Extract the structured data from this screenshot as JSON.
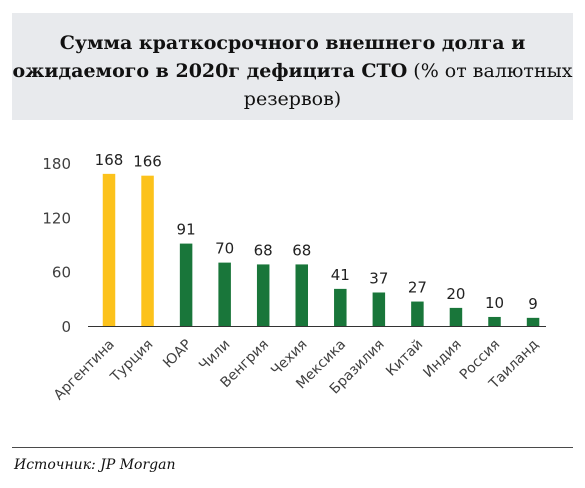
{
  "title": {
    "bold_part": "Сумма краткосрочного внешнего долга и ожидаемого в 2020г дефицита СТО",
    "normal_part": "(% от валютных резервов)"
  },
  "source": "Источник: JP Morgan",
  "colors": {
    "highlight": "#fcc21b",
    "main": "#19763a",
    "axis": "#333333",
    "text": "#404040"
  },
  "chart_data": {
    "type": "bar",
    "title": "Сумма краткосрочного внешнего долга и ожидаемого в 2020г дефицита СТО (% от валютных резервов)",
    "xlabel": "",
    "ylabel": "",
    "ylim": [
      0,
      180
    ],
    "yticks": [
      0,
      60,
      120,
      180
    ],
    "grid": false,
    "legend": "none",
    "categories": [
      "Аргентина",
      "Турция",
      "ЮАР",
      "Чили",
      "Венгрия",
      "Чехия",
      "Мексика",
      "Бразилия",
      "Китай",
      "Индия",
      "Россия",
      "Таиланд"
    ],
    "values": [
      168,
      166,
      91,
      70,
      68,
      68,
      41,
      37,
      27,
      20,
      10,
      9
    ],
    "bar_colors": [
      "#fcc21b",
      "#fcc21b",
      "#19763a",
      "#19763a",
      "#19763a",
      "#19763a",
      "#19763a",
      "#19763a",
      "#19763a",
      "#19763a",
      "#19763a",
      "#19763a"
    ]
  }
}
